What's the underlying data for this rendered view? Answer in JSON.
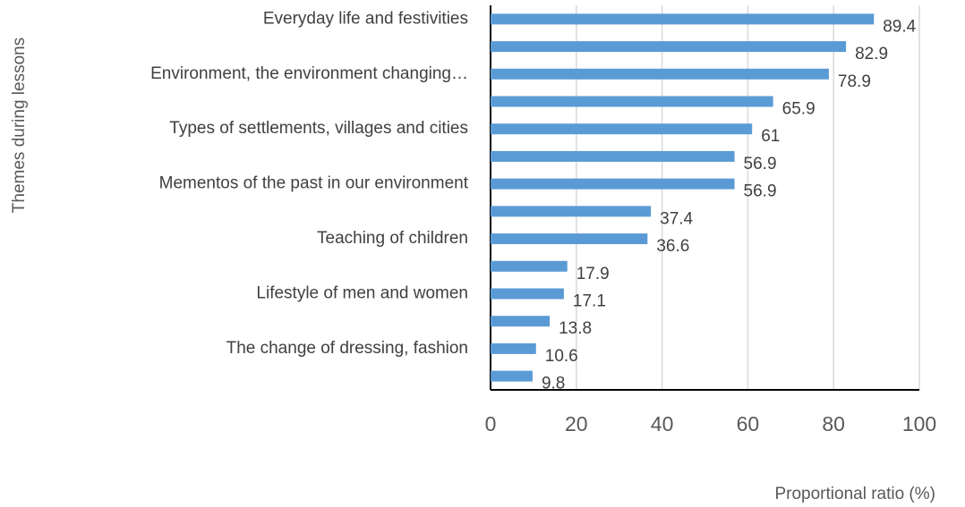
{
  "chart_data": {
    "type": "barh",
    "y_label": "Themes during lessons",
    "x_label": "Proportional ratio (%)",
    "categories": [
      "Everyday life and festivities",
      null,
      "Environment, the environment changing…",
      null,
      "Types of settlements, villages and cities",
      null,
      "Mementos of the past in our environment",
      null,
      "Teaching of children",
      null,
      "Lifestyle of men and women",
      null,
      "The change of dressing, fashion",
      null
    ],
    "values": [
      89.4,
      82.9,
      78.9,
      65.9,
      61,
      56.9,
      56.9,
      37.4,
      36.6,
      17.9,
      17.1,
      13.8,
      10.6,
      9.8
    ],
    "color": "#5b9bd5",
    "xlim": [
      0,
      100
    ],
    "xticks": [
      0,
      20,
      40,
      60,
      80,
      100
    ],
    "grid": true
  }
}
